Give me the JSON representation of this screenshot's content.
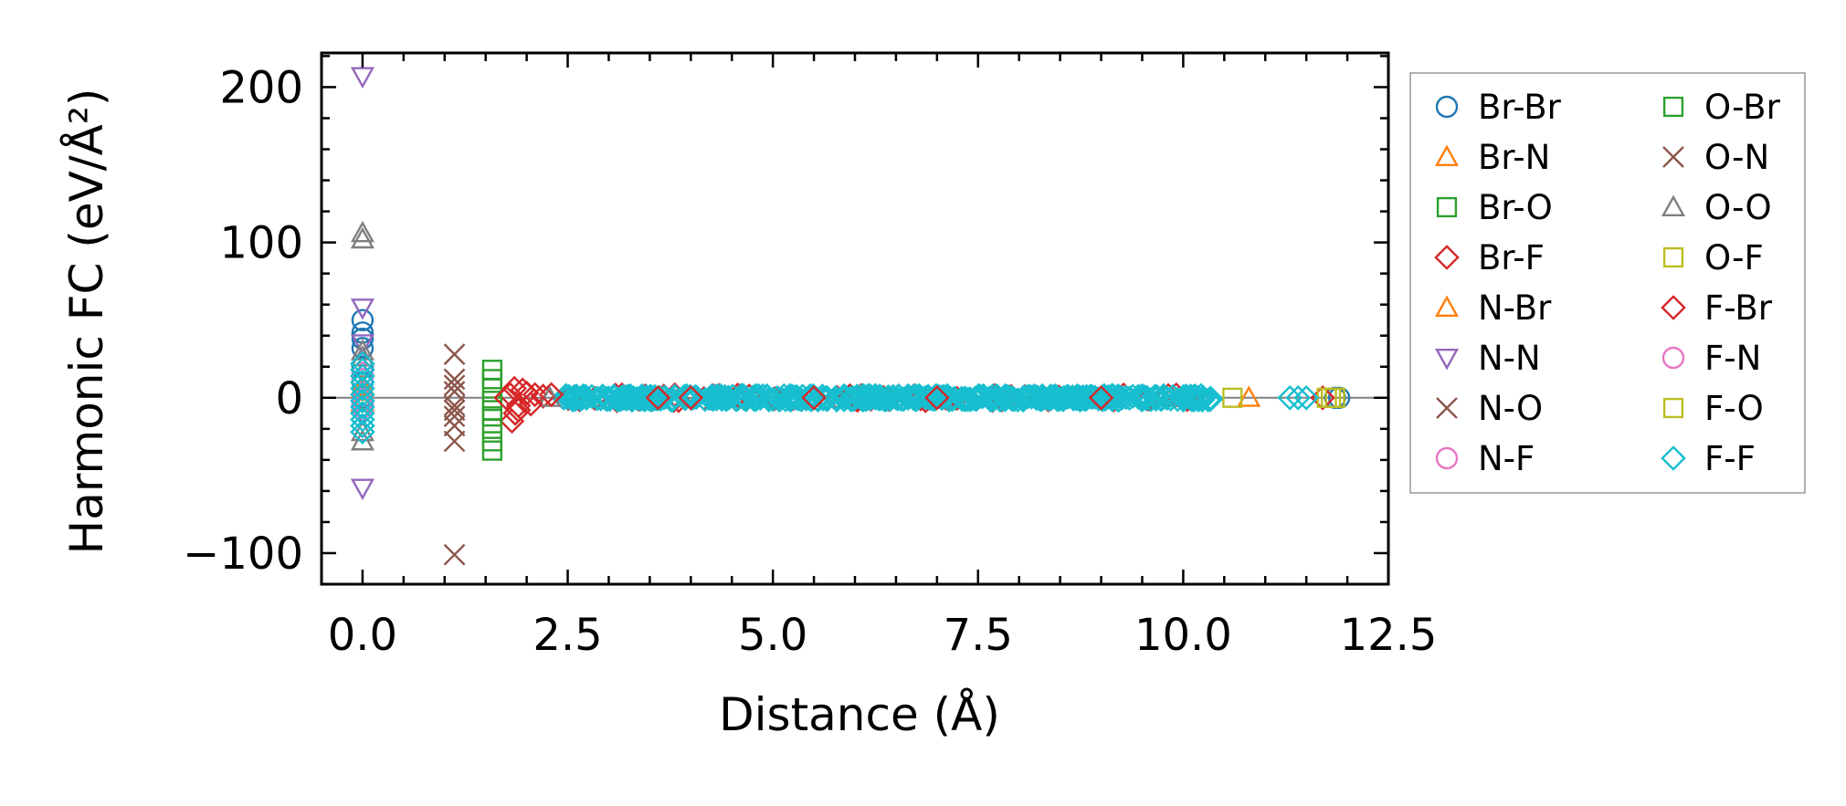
{
  "chart_data": {
    "type": "scatter",
    "title": "",
    "xlabel": "Distance (Å)",
    "ylabel": "Harmonic FC (eV/Å²)",
    "xlim": [
      -0.5,
      12.5
    ],
    "ylim": [
      -120,
      222
    ],
    "x_ticks": [
      0.0,
      2.5,
      5.0,
      7.5,
      10.0,
      12.5
    ],
    "x_tick_labels": [
      "0.0",
      "2.5",
      "5.0",
      "7.5",
      "10.0",
      "12.5"
    ],
    "y_ticks": [
      -100,
      0,
      100,
      200
    ],
    "y_tick_labels": [
      "−100",
      "0",
      "100",
      "200"
    ],
    "zero_line": true,
    "legend_position": "outside-right",
    "legend_columns": 2,
    "series": [
      {
        "name": "Br-Br",
        "marker": "circle",
        "color": "#1f77b4",
        "points": [
          [
            0,
            50
          ],
          [
            0,
            42
          ],
          [
            0,
            38
          ],
          [
            0,
            32
          ],
          [
            0,
            20
          ],
          [
            0,
            10
          ],
          [
            0,
            0
          ],
          [
            0,
            -5
          ],
          [
            11.85,
            0
          ],
          [
            11.9,
            0
          ]
        ]
      },
      {
        "name": "Br-N",
        "marker": "triangle-up",
        "color": "#ff7f0e",
        "points": [
          [
            0,
            8
          ],
          [
            0,
            4
          ],
          [
            0,
            -2
          ],
          [
            10.8,
            0
          ]
        ]
      },
      {
        "name": "Br-O",
        "marker": "square",
        "color": "#2ca02c",
        "points": [
          [
            1.58,
            12
          ],
          [
            1.58,
            -8
          ],
          [
            1.58,
            -28
          ]
        ]
      },
      {
        "name": "Br-F",
        "marker": "diamond",
        "color": "#d62728",
        "points": [
          [
            1.8,
            2
          ],
          [
            1.82,
            -15
          ],
          [
            1.86,
            -10
          ],
          [
            1.9,
            -5
          ],
          [
            1.95,
            5
          ],
          [
            2.0,
            3
          ],
          [
            2.1,
            2
          ],
          [
            2.2,
            1
          ],
          [
            3.6,
            0
          ],
          [
            4.0,
            0
          ],
          [
            5.5,
            0
          ],
          [
            7.0,
            0
          ],
          [
            9.0,
            0
          ],
          [
            11.7,
            0
          ]
        ]
      },
      {
        "name": "N-Br",
        "marker": "triangle-up",
        "color": "#ff7f0e",
        "points": [
          [
            0,
            6
          ],
          [
            0,
            -3
          ]
        ]
      },
      {
        "name": "N-N",
        "marker": "triangle-down",
        "color": "#9467bd",
        "points": [
          [
            0,
            207
          ],
          [
            0,
            58
          ],
          [
            0,
            35
          ],
          [
            0,
            -58
          ],
          [
            0,
            -10
          ]
        ]
      },
      {
        "name": "N-O",
        "marker": "x",
        "color": "#8c564b",
        "points": [
          [
            1.12,
            28
          ],
          [
            1.12,
            12
          ],
          [
            1.12,
            4
          ],
          [
            1.12,
            -5
          ],
          [
            1.12,
            -12
          ],
          [
            1.12,
            -28
          ],
          [
            1.12,
            -101
          ]
        ]
      },
      {
        "name": "N-F",
        "marker": "circle",
        "color": "#e377c2",
        "points": [
          [
            0,
            12
          ],
          [
            0,
            -2
          ]
        ]
      },
      {
        "name": "O-Br",
        "marker": "square",
        "color": "#2ca02c",
        "points": [
          [
            1.58,
            18
          ],
          [
            1.58,
            6
          ],
          [
            1.58,
            -2
          ],
          [
            1.58,
            -12
          ],
          [
            1.58,
            -20
          ],
          [
            1.58,
            -34
          ]
        ]
      },
      {
        "name": "O-N",
        "marker": "x",
        "color": "#8c564b",
        "points": [
          [
            1.12,
            8
          ],
          [
            1.12,
            -8
          ],
          [
            1.12,
            -18
          ]
        ]
      },
      {
        "name": "O-O",
        "marker": "triangle-up",
        "color": "#7f7f7f",
        "points": [
          [
            0,
            106
          ],
          [
            0,
            102
          ],
          [
            0,
            30
          ],
          [
            0,
            26
          ],
          [
            0,
            -28
          ],
          [
            0,
            -22
          ],
          [
            2.28,
            0
          ]
        ]
      },
      {
        "name": "O-F",
        "marker": "square",
        "color": "#bcbd22",
        "points": [
          [
            10.6,
            0
          ],
          [
            11.8,
            0
          ],
          [
            11.85,
            0
          ]
        ]
      },
      {
        "name": "F-Br",
        "marker": "diamond",
        "color": "#d62728",
        "points": [
          [
            1.75,
            0
          ],
          [
            1.85,
            6
          ],
          [
            1.9,
            -8
          ],
          [
            2.05,
            -4
          ],
          [
            2.3,
            2
          ]
        ]
      },
      {
        "name": "F-N",
        "marker": "circle",
        "color": "#e377c2",
        "points": [
          [
            0,
            16
          ],
          [
            0,
            -6
          ]
        ]
      },
      {
        "name": "F-O",
        "marker": "square",
        "color": "#bcbd22",
        "points": [
          [
            11.75,
            0
          ]
        ]
      },
      {
        "name": "F-F",
        "marker": "diamond",
        "color": "#17becf",
        "points": [
          [
            0,
            22
          ],
          [
            0,
            18
          ],
          [
            0,
            14
          ],
          [
            0,
            10
          ],
          [
            0,
            6
          ],
          [
            0,
            2
          ],
          [
            0,
            -2
          ],
          [
            0,
            -6
          ],
          [
            0,
            -10
          ],
          [
            0,
            -14
          ],
          [
            0,
            -18
          ],
          [
            0,
            -22
          ],
          [
            11.3,
            0
          ],
          [
            11.4,
            0
          ],
          [
            11.5,
            0
          ]
        ]
      }
    ],
    "band": {
      "series": "F-F",
      "x_from": 2.45,
      "x_to": 10.4,
      "y": 0,
      "jitter": 3,
      "count": 420
    }
  }
}
